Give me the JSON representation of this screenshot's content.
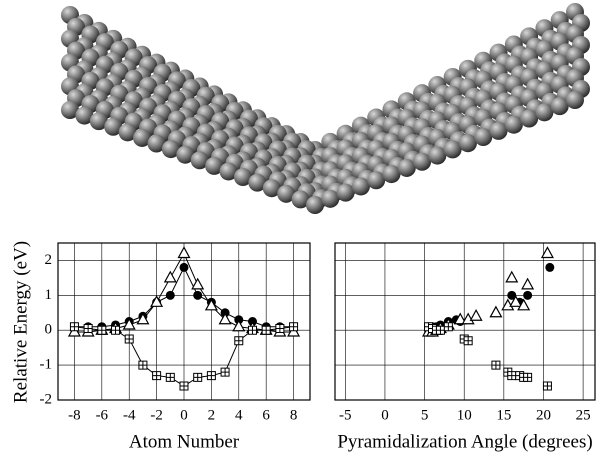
{
  "chart_data": [
    {
      "type": "line",
      "xlabel": "Atom Number",
      "ylabel": "Relative Energy (eV)",
      "xlim": [
        -9.2,
        9.2
      ],
      "xticks": [
        -8,
        -6,
        -4,
        -2,
        0,
        2,
        4,
        6,
        8
      ],
      "ylim": [
        -2,
        2.5
      ],
      "yticks": [
        -2,
        -1,
        0,
        1,
        2
      ],
      "ytick_labels": true,
      "grid": true,
      "series": [
        {
          "marker": "circle",
          "color": "#000",
          "x": [
            -8,
            -7,
            -6,
            -5,
            -4,
            -3,
            -2,
            -1,
            0,
            1,
            2,
            3,
            4,
            5,
            6,
            7,
            8
          ],
          "values": [
            0.1,
            0.1,
            0.1,
            0.15,
            0.25,
            0.4,
            0.8,
            1.0,
            1.8,
            1.0,
            0.8,
            0.5,
            0.3,
            0.25,
            0.1,
            0.1,
            0.1
          ]
        },
        {
          "marker": "triangle",
          "color": "#000",
          "x": [
            -8,
            -7,
            -6,
            -5,
            -4,
            -3,
            -2,
            -1,
            0,
            1,
            2,
            3,
            4,
            5,
            6,
            7,
            8
          ],
          "values": [
            -0.05,
            -0.05,
            0,
            0.05,
            0.15,
            0.3,
            0.8,
            1.5,
            2.2,
            1.3,
            0.7,
            0.3,
            0.1,
            0.05,
            0,
            -0.05,
            -0.05
          ]
        },
        {
          "marker": "square-plus",
          "color": "#000",
          "x": [
            -8,
            -7,
            -6,
            -5,
            -4,
            -3,
            -2,
            -1,
            0,
            1,
            2,
            3,
            4,
            5,
            6,
            7,
            8
          ],
          "values": [
            0.1,
            0.05,
            0,
            0,
            -0.25,
            -1.0,
            -1.3,
            -1.35,
            -1.6,
            -1.35,
            -1.3,
            -1.2,
            -0.3,
            0,
            0,
            0.05,
            0.1
          ]
        }
      ]
    },
    {
      "type": "scatter",
      "xlabel": "Pyramidalization Angle (degrees)",
      "xlim": [
        -6.3,
        26.5
      ],
      "xticks": [
        -5,
        0,
        5,
        10,
        15,
        20,
        25
      ],
      "ylim": [
        -2,
        2.5
      ],
      "yticks": [
        -2,
        -1,
        0,
        1,
        2
      ],
      "ytick_labels": false,
      "grid": true,
      "series": [
        {
          "marker": "circle",
          "color": "#000",
          "x": [
            5.5,
            6,
            6.5,
            7,
            8,
            9,
            9.5,
            16,
            17,
            18,
            20.8
          ],
          "values": [
            0.1,
            0.1,
            0.1,
            0.15,
            0.25,
            0.3,
            0.25,
            1.0,
            0.8,
            1.0,
            1.8
          ]
        },
        {
          "marker": "triangle",
          "color": "#000",
          "x": [
            5.5,
            6,
            6.5,
            7,
            8,
            9.5,
            10.5,
            11.5,
            14,
            15.5,
            16,
            16.5,
            17.5,
            18,
            20.5
          ],
          "values": [
            -0.05,
            -0.05,
            0,
            0.05,
            0.15,
            0.3,
            0.3,
            0.4,
            0.5,
            0.7,
            1.5,
            0.8,
            0.7,
            1.3,
            2.2
          ]
        },
        {
          "marker": "square-plus",
          "color": "#000",
          "x": [
            5.5,
            6,
            6.5,
            7,
            8,
            10,
            10.5,
            14,
            15.5,
            16,
            17,
            17.5,
            18,
            20.5
          ],
          "values": [
            0.1,
            0.05,
            0,
            0,
            0.1,
            -0.25,
            -0.3,
            -1.0,
            -1.2,
            -1.3,
            -1.3,
            -1.35,
            -1.35,
            -1.6
          ]
        }
      ]
    }
  ]
}
